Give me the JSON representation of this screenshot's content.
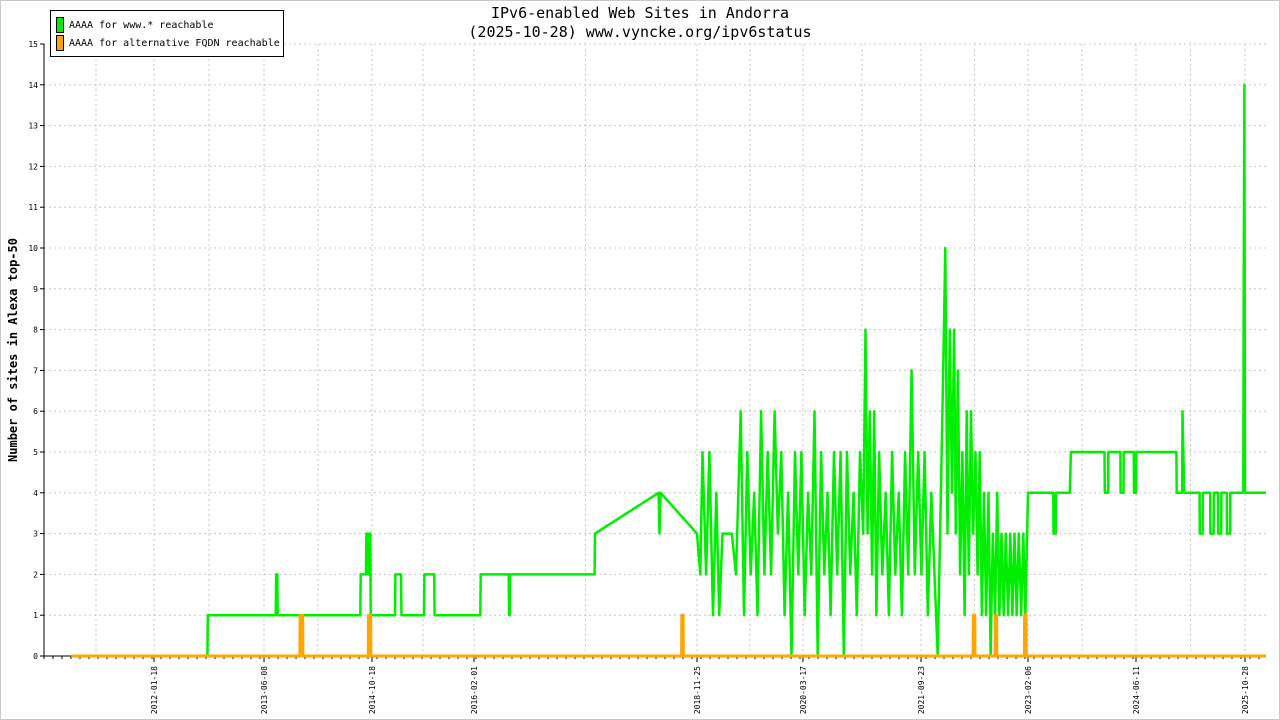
{
  "chart_data": {
    "type": "line",
    "title": "IPv6-enabled Web Sites in Andorra",
    "subtitle": "(2025-10-28) www.vyncke.org/ipv6status",
    "xlabel": "",
    "ylabel": "Number of sites in Alexa top-50",
    "ylim": [
      0,
      15
    ],
    "y_ticks": [
      "0",
      "1",
      "2",
      "3",
      "4",
      "5",
      "6",
      "7",
      "8",
      "9",
      "10",
      "11",
      "12",
      "13",
      "14",
      "15"
    ],
    "x_ticks": [
      "2012-01-18",
      "2013-06-08",
      "2014-10-18",
      "2016-02-01",
      "2018-11-25",
      "2020-03-17",
      "2021-09-23",
      "2023-02-06",
      "2024-06-11",
      "2025-10-28"
    ],
    "grid": true,
    "legend_position": "top-left",
    "series": [
      {
        "name": "AAAA for www.* reachable",
        "color": "#00ee00",
        "points": [
          [
            "2011-01-01",
            0
          ],
          [
            "2012-09-20",
            0
          ],
          [
            "2012-09-22",
            1
          ],
          [
            "2013-08-01",
            1
          ],
          [
            "2013-08-03",
            2
          ],
          [
            "2013-08-08",
            2
          ],
          [
            "2013-08-10",
            1
          ],
          [
            "2014-08-25",
            1
          ],
          [
            "2014-08-27",
            2
          ],
          [
            "2014-09-20",
            2
          ],
          [
            "2014-09-22",
            3
          ],
          [
            "2014-09-28",
            3
          ],
          [
            "2014-09-30",
            2
          ],
          [
            "2014-10-05",
            2
          ],
          [
            "2014-10-07",
            3
          ],
          [
            "2014-10-10",
            3
          ],
          [
            "2014-10-12",
            1
          ],
          [
            "2015-02-01",
            1
          ],
          [
            "2015-02-03",
            2
          ],
          [
            "2015-03-01",
            2
          ],
          [
            "2015-03-03",
            1
          ],
          [
            "2015-06-15",
            1
          ],
          [
            "2015-06-17",
            2
          ],
          [
            "2015-08-01",
            2
          ],
          [
            "2015-08-03",
            1
          ],
          [
            "2016-03-01",
            1
          ],
          [
            "2016-03-03",
            2
          ],
          [
            "2016-07-10",
            2
          ],
          [
            "2016-07-12",
            1
          ],
          [
            "2016-07-15",
            1
          ],
          [
            "2016-07-17",
            2
          ],
          [
            "2017-08-10",
            2
          ],
          [
            "2017-08-12",
            3
          ],
          [
            "2018-06-01",
            4
          ],
          [
            "2018-06-05",
            3
          ],
          [
            "2018-06-10",
            4
          ],
          [
            "2018-11-25",
            3
          ],
          [
            "2018-12-10",
            2
          ],
          [
            "2018-12-20",
            5
          ],
          [
            "2019-01-05",
            2
          ],
          [
            "2019-01-20",
            5
          ],
          [
            "2019-02-05",
            1
          ],
          [
            "2019-02-20",
            4
          ],
          [
            "2019-03-05",
            1
          ],
          [
            "2019-03-20",
            3
          ],
          [
            "2019-05-01",
            3
          ],
          [
            "2019-05-20",
            2
          ],
          [
            "2019-06-10",
            6
          ],
          [
            "2019-06-25",
            1
          ],
          [
            "2019-07-10",
            5
          ],
          [
            "2019-07-25",
            2
          ],
          [
            "2019-08-10",
            4
          ],
          [
            "2019-08-25",
            1
          ],
          [
            "2019-09-10",
            6
          ],
          [
            "2019-09-25",
            2
          ],
          [
            "2019-10-10",
            5
          ],
          [
            "2019-10-25",
            2
          ],
          [
            "2019-11-10",
            6
          ],
          [
            "2019-11-25",
            3
          ],
          [
            "2019-12-10",
            5
          ],
          [
            "2019-12-25",
            1
          ],
          [
            "2020-01-10",
            4
          ],
          [
            "2020-01-25",
            0
          ],
          [
            "2020-02-10",
            5
          ],
          [
            "2020-02-25",
            2
          ],
          [
            "2020-03-10",
            5
          ],
          [
            "2020-03-25",
            1
          ],
          [
            "2020-04-10",
            4
          ],
          [
            "2020-04-25",
            2
          ],
          [
            "2020-05-10",
            6
          ],
          [
            "2020-05-25",
            0
          ],
          [
            "2020-06-10",
            5
          ],
          [
            "2020-06-25",
            2
          ],
          [
            "2020-07-10",
            4
          ],
          [
            "2020-07-25",
            1
          ],
          [
            "2020-08-10",
            5
          ],
          [
            "2020-08-25",
            2
          ],
          [
            "2020-09-10",
            5
          ],
          [
            "2020-09-25",
            0
          ],
          [
            "2020-10-10",
            5
          ],
          [
            "2020-10-25",
            2
          ],
          [
            "2020-11-10",
            4
          ],
          [
            "2020-11-25",
            1
          ],
          [
            "2020-12-10",
            5
          ],
          [
            "2020-12-25",
            3
          ],
          [
            "2021-01-05",
            8
          ],
          [
            "2021-01-15",
            3
          ],
          [
            "2021-01-25",
            6
          ],
          [
            "2021-02-05",
            2
          ],
          [
            "2021-02-15",
            6
          ],
          [
            "2021-02-25",
            1
          ],
          [
            "2021-03-10",
            5
          ],
          [
            "2021-03-25",
            2
          ],
          [
            "2021-04-10",
            4
          ],
          [
            "2021-04-25",
            1
          ],
          [
            "2021-05-10",
            5
          ],
          [
            "2021-05-25",
            2
          ],
          [
            "2021-06-10",
            4
          ],
          [
            "2021-06-25",
            1
          ],
          [
            "2021-07-10",
            5
          ],
          [
            "2021-07-25",
            2
          ],
          [
            "2021-08-10",
            7
          ],
          [
            "2021-08-25",
            2
          ],
          [
            "2021-09-10",
            5
          ],
          [
            "2021-09-25",
            2
          ],
          [
            "2021-10-10",
            5
          ],
          [
            "2021-10-25",
            1
          ],
          [
            "2021-11-10",
            4
          ],
          [
            "2021-11-25",
            2
          ],
          [
            "2021-12-10",
            0
          ],
          [
            "2021-12-25",
            4
          ],
          [
            "2022-01-05",
            7
          ],
          [
            "2022-01-15",
            10
          ],
          [
            "2022-01-25",
            3
          ],
          [
            "2022-02-05",
            8
          ],
          [
            "2022-02-15",
            4
          ],
          [
            "2022-02-25",
            8
          ],
          [
            "2022-03-05",
            3
          ],
          [
            "2022-03-15",
            7
          ],
          [
            "2022-03-25",
            2
          ],
          [
            "2022-04-05",
            5
          ],
          [
            "2022-04-15",
            1
          ],
          [
            "2022-04-25",
            6
          ],
          [
            "2022-05-05",
            2
          ],
          [
            "2022-05-15",
            6
          ],
          [
            "2022-05-25",
            3
          ],
          [
            "2022-06-05",
            5
          ],
          [
            "2022-06-15",
            2
          ],
          [
            "2022-06-25",
            5
          ],
          [
            "2022-07-05",
            1
          ],
          [
            "2022-07-15",
            4
          ],
          [
            "2022-07-25",
            1
          ],
          [
            "2022-08-05",
            4
          ],
          [
            "2022-08-15",
            0
          ],
          [
            "2022-08-25",
            3
          ],
          [
            "2022-09-05",
            1
          ],
          [
            "2022-09-15",
            4
          ],
          [
            "2022-09-25",
            1
          ],
          [
            "2022-10-05",
            3
          ],
          [
            "2022-10-15",
            1
          ],
          [
            "2022-10-25",
            3
          ],
          [
            "2022-11-05",
            1
          ],
          [
            "2022-11-15",
            3
          ],
          [
            "2022-11-25",
            1
          ],
          [
            "2022-12-05",
            3
          ],
          [
            "2022-12-15",
            1
          ],
          [
            "2022-12-25",
            3
          ],
          [
            "2023-01-05",
            1
          ],
          [
            "2023-01-15",
            3
          ],
          [
            "2023-01-25",
            1
          ],
          [
            "2023-02-06",
            4
          ],
          [
            "2023-06-01",
            4
          ],
          [
            "2023-06-02",
            3
          ],
          [
            "2023-06-12",
            3
          ],
          [
            "2023-06-13",
            4
          ],
          [
            "2023-08-15",
            4
          ],
          [
            "2023-08-20",
            5
          ],
          [
            "2024-01-20",
            5
          ],
          [
            "2024-01-21",
            4
          ],
          [
            "2024-02-05",
            4
          ],
          [
            "2024-02-06",
            5
          ],
          [
            "2024-04-01",
            5
          ],
          [
            "2024-04-02",
            4
          ],
          [
            "2024-04-15",
            4
          ],
          [
            "2024-04-16",
            5
          ],
          [
            "2024-06-01",
            5
          ],
          [
            "2024-06-02",
            4
          ],
          [
            "2024-06-12",
            4
          ],
          [
            "2024-06-13",
            5
          ],
          [
            "2024-12-15",
            5
          ],
          [
            "2024-12-16",
            4
          ],
          [
            "2025-01-10",
            4
          ],
          [
            "2025-01-12",
            6
          ],
          [
            "2025-01-20",
            4
          ],
          [
            "2025-04-01",
            4
          ],
          [
            "2025-04-02",
            3
          ],
          [
            "2025-04-15",
            3
          ],
          [
            "2025-04-16",
            4
          ],
          [
            "2025-05-20",
            4
          ],
          [
            "2025-05-21",
            3
          ],
          [
            "2025-06-05",
            3
          ],
          [
            "2025-06-06",
            4
          ],
          [
            "2025-06-25",
            4
          ],
          [
            "2025-06-26",
            3
          ],
          [
            "2025-07-10",
            3
          ],
          [
            "2025-07-11",
            4
          ],
          [
            "2025-08-05",
            4
          ],
          [
            "2025-08-06",
            3
          ],
          [
            "2025-08-20",
            3
          ],
          [
            "2025-08-21",
            4
          ],
          [
            "2025-10-20",
            4
          ],
          [
            "2025-10-22",
            9
          ],
          [
            "2025-10-25",
            14
          ],
          [
            "2025-10-28",
            4
          ],
          [
            "2026-03-01",
            4
          ]
        ]
      },
      {
        "name": "AAAA for alternative FQDN reachable",
        "color": "#ffa500",
        "points": [
          [
            "2011-01-01",
            0
          ],
          [
            "2013-11-20",
            0
          ],
          [
            "2013-11-21",
            1
          ],
          [
            "2013-12-03",
            1
          ],
          [
            "2013-12-04",
            0
          ],
          [
            "2014-10-01",
            0
          ],
          [
            "2014-10-02",
            1
          ],
          [
            "2014-10-12",
            1
          ],
          [
            "2014-10-13",
            0
          ],
          [
            "2018-09-15",
            0
          ],
          [
            "2018-09-16",
            1
          ],
          [
            "2018-09-22",
            1
          ],
          [
            "2018-09-23",
            0
          ],
          [
            "2022-05-25",
            0
          ],
          [
            "2022-05-26",
            1
          ],
          [
            "2022-06-02",
            1
          ],
          [
            "2022-06-03",
            0
          ],
          [
            "2022-09-05",
            0
          ],
          [
            "2022-09-06",
            1
          ],
          [
            "2022-09-12",
            1
          ],
          [
            "2022-09-13",
            0
          ],
          [
            "2023-01-20",
            0
          ],
          [
            "2023-01-21",
            1
          ],
          [
            "2023-01-27",
            1
          ],
          [
            "2023-01-28",
            0
          ],
          [
            "2026-03-01",
            0
          ]
        ]
      }
    ]
  }
}
